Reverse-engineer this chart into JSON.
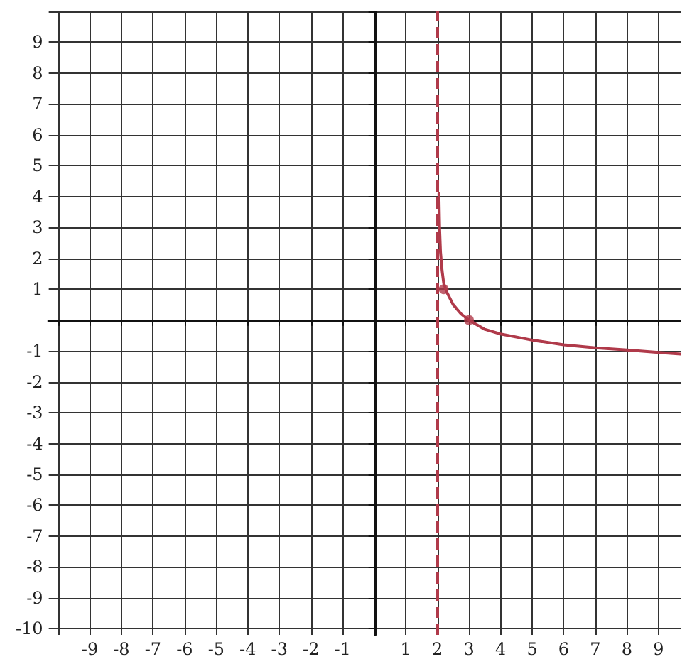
{
  "chart_data": {
    "type": "line",
    "xlim": [
      -10.3,
      9.7
    ],
    "ylim": [
      -10.2,
      10
    ],
    "xticks": [
      {
        "value": -10,
        "label": null
      },
      -9,
      -8,
      -7,
      -6,
      -5,
      -4,
      -3,
      -2,
      -1,
      {
        "value": 0,
        "label": null
      },
      1,
      2,
      3,
      4,
      5,
      6,
      7,
      8,
      9
    ],
    "yticks": [
      -10,
      -9,
      -8,
      -7,
      -6,
      -5,
      -4,
      -3,
      -2,
      -1,
      {
        "value": 0,
        "label": null
      },
      1,
      2,
      3,
      4,
      5,
      6,
      7,
      8,
      9,
      {
        "value": 10,
        "label": null
      }
    ],
    "grid": true,
    "line_style": "solid",
    "marker": "none",
    "series": [
      {
        "color": "#b03a4a",
        "x": [
          2.05,
          2.07,
          2.1,
          2.15,
          2.2,
          2.3,
          2.5,
          2.75,
          3,
          3.5,
          4,
          5,
          6,
          7,
          8,
          9,
          9.7
        ],
        "values": [
          4.1,
          3,
          2.2,
          1.6,
          1.2,
          0.9,
          0.5,
          0.2,
          0,
          -0.3,
          -0.45,
          -0.65,
          -0.8,
          -0.9,
          -0.97,
          -1.05,
          -1.1
        ]
      },
      {
        "type": "scatter",
        "marker": "circle",
        "color": "#b03a4a",
        "x": [
          2.2,
          3
        ],
        "values": [
          1,
          0
        ]
      }
    ],
    "ref_lines": [
      {
        "axis": "x",
        "value": 2,
        "color": "#b03a4a",
        "line_style": "dashed"
      }
    ]
  }
}
